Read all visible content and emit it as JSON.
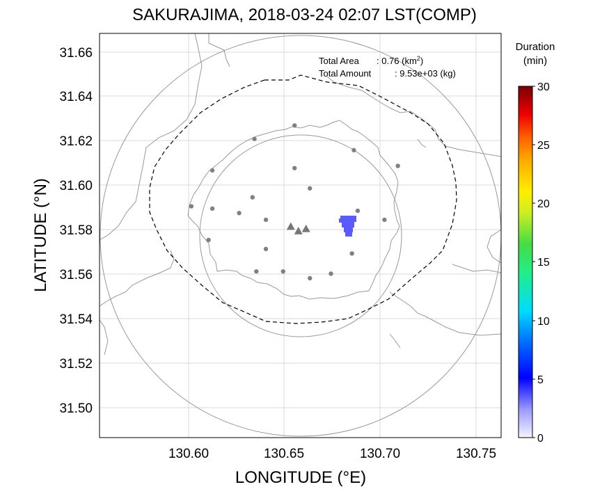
{
  "title": "SAKURAJIMA, 2018-03-24 02:07 LST(COMP)",
  "xlabel": "LONGITUDE (°E)",
  "ylabel": "LATITUDE (°N)",
  "x_ticks": [
    "130.60",
    "130.65",
    "130.70",
    "130.75"
  ],
  "y_ticks": [
    "31.66",
    "31.64",
    "31.62",
    "31.60",
    "31.58",
    "31.56",
    "31.54",
    "31.52",
    "31.50"
  ],
  "info": {
    "area_label": "Total Area",
    "area_value": ": 0.76 (km",
    "area_unit_sup": "2",
    "area_close": ")",
    "amount_label": "Total Amount",
    "amount_value": ": 9.53e+03 (kg)"
  },
  "colorbar": {
    "title_line1": "Duration",
    "title_line2": "(min)",
    "ticks": [
      "30",
      "25",
      "20",
      "15",
      "10",
      "5",
      "0"
    ],
    "range": [
      0,
      30
    ]
  },
  "colors": {
    "deposit": "#5a5aff",
    "coast": "#999999",
    "markers": "#808080",
    "grid": "#d9d9d9"
  },
  "map_extent": {
    "lon": [
      130.553,
      130.763
    ],
    "lat": [
      31.487,
      31.667
    ]
  },
  "stations": [
    {
      "lon": 130.655,
      "lat": 31.626
    },
    {
      "lon": 130.634,
      "lat": 31.62
    },
    {
      "lon": 130.686,
      "lat": 31.615
    },
    {
      "lon": 130.655,
      "lat": 31.607
    },
    {
      "lon": 130.709,
      "lat": 31.608
    },
    {
      "lon": 130.612,
      "lat": 31.606
    },
    {
      "lon": 130.663,
      "lat": 31.598
    },
    {
      "lon": 130.601,
      "lat": 31.59
    },
    {
      "lon": 130.612,
      "lat": 31.589
    },
    {
      "lon": 130.633,
      "lat": 31.594
    },
    {
      "lon": 130.626,
      "lat": 31.587
    },
    {
      "lon": 130.64,
      "lat": 31.584
    },
    {
      "lon": 130.688,
      "lat": 31.588
    },
    {
      "lon": 130.702,
      "lat": 31.584
    },
    {
      "lon": 130.61,
      "lat": 31.575
    },
    {
      "lon": 130.64,
      "lat": 31.571
    },
    {
      "lon": 130.685,
      "lat": 31.569
    },
    {
      "lon": 130.635,
      "lat": 31.561
    },
    {
      "lon": 130.649,
      "lat": 31.561
    },
    {
      "lon": 130.663,
      "lat": 31.558
    },
    {
      "lon": 130.674,
      "lat": 31.56
    }
  ],
  "vents": [
    {
      "lon": 130.653,
      "lat": 31.581
    },
    {
      "lon": 130.657,
      "lat": 31.579
    },
    {
      "lon": 130.661,
      "lat": 31.58
    }
  ],
  "deposit_duration_min": 5
}
